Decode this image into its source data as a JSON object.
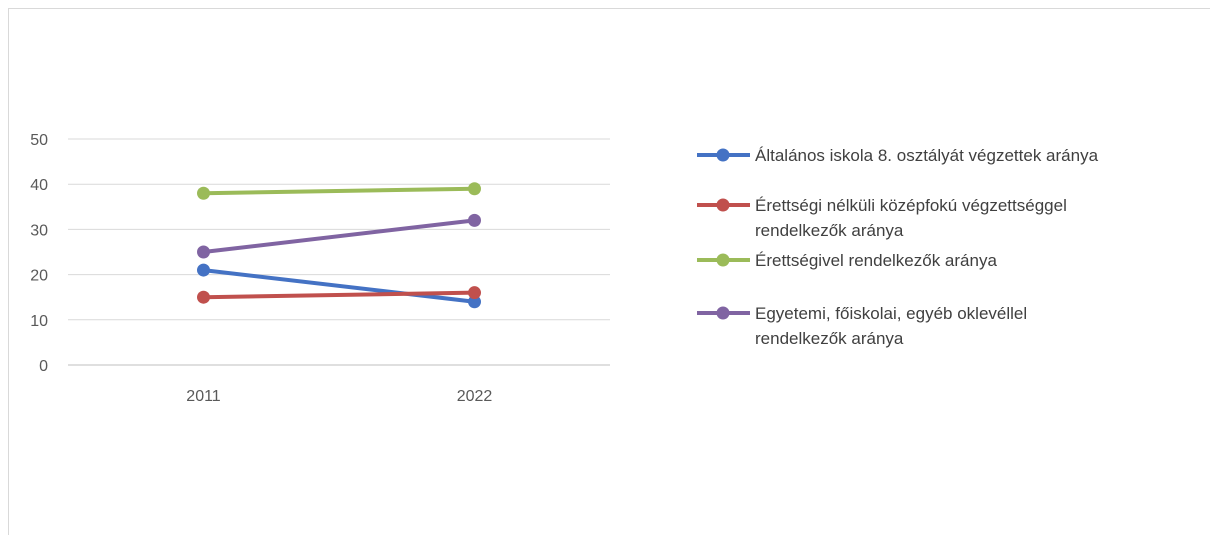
{
  "chart_data": {
    "type": "line",
    "categories": [
      "2011",
      "2022"
    ],
    "ylim": [
      0,
      50
    ],
    "yticks": [
      0,
      10,
      20,
      30,
      40,
      50
    ],
    "grid": true,
    "legend_position": "right",
    "series": [
      {
        "name": "Általános iskola 8. osztályát végzettek aránya",
        "values": [
          21,
          14
        ],
        "color": "#4472c4"
      },
      {
        "name": "Érettségi nélküli középfokú végzettséggel rendelkezők aránya",
        "values": [
          15,
          16
        ],
        "color": "#c0504d"
      },
      {
        "name": "Érettségivel rendelkezők aránya",
        "values": [
          38,
          39
        ],
        "color": "#9bbb59"
      },
      {
        "name": "Egyetemi, főiskolai, egyéb oklevéllel rendelkezők aránya",
        "values": [
          25,
          32
        ],
        "color": "#8064a2"
      }
    ],
    "legend_lines": [
      [
        "Általános iskola 8. osztályát végzettek aránya"
      ],
      [
        "Érettségi nélküli középfokú végzettséggel",
        "rendelkezők aránya"
      ],
      [
        "Érettségivel rendelkezők aránya"
      ],
      [
        "Egyetemi, főiskolai, egyéb oklevéllel",
        "rendelkezők aránya"
      ]
    ]
  }
}
